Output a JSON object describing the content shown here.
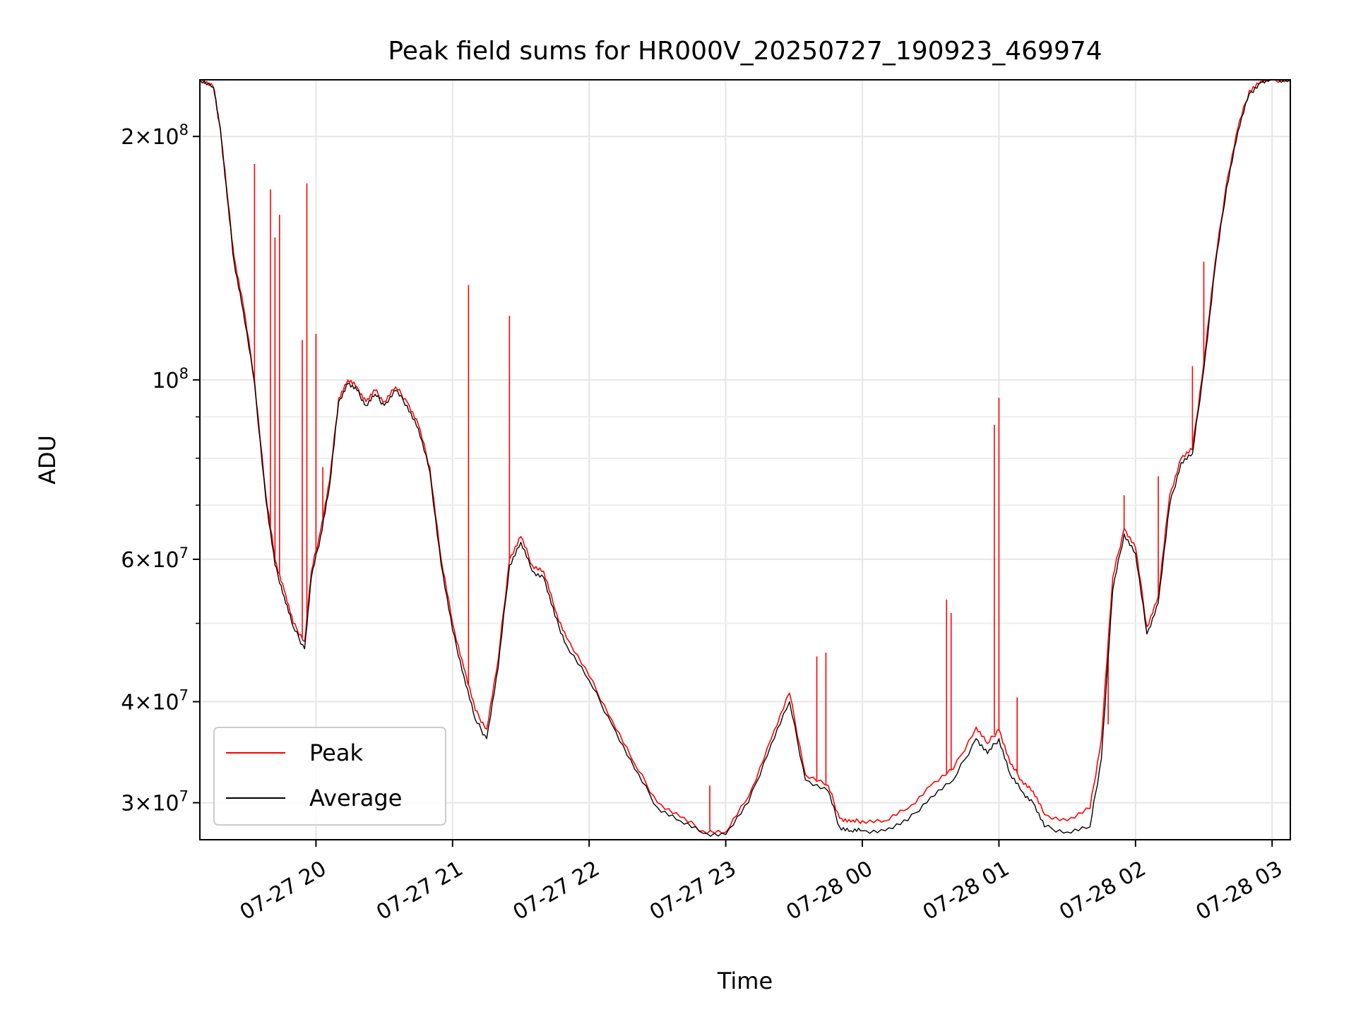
{
  "chart_data": {
    "type": "line",
    "title": "Peak field sums for HR000V_20250727_190923_469974",
    "xlabel": "Time",
    "ylabel": "ADU",
    "yscale": "log",
    "ylim": [
      27000000,
      235000000
    ],
    "xlim": [
      "07-27 19:09",
      "07-28 03:08"
    ],
    "grid": true,
    "legend_position": "lower-left",
    "x_ticks": [
      {
        "t": "07-27 20:00",
        "label": "07-27 20"
      },
      {
        "t": "07-27 21:00",
        "label": "07-27 21"
      },
      {
        "t": "07-27 22:00",
        "label": "07-27 22"
      },
      {
        "t": "07-27 23:00",
        "label": "07-27 23"
      },
      {
        "t": "07-28 00:00",
        "label": "07-28 00"
      },
      {
        "t": "07-28 01:00",
        "label": "07-28 01"
      },
      {
        "t": "07-28 02:00",
        "label": "07-28 02"
      },
      {
        "t": "07-28 03:00",
        "label": "07-28 03"
      }
    ],
    "y_ticks": [
      {
        "v": 30000000,
        "mant": "3",
        "exp": "7"
      },
      {
        "v": 40000000,
        "mant": "4",
        "exp": "7"
      },
      {
        "v": 60000000,
        "mant": "6",
        "exp": "7"
      },
      {
        "v": 100000000,
        "mant": "",
        "exp": "8"
      },
      {
        "v": 200000000,
        "mant": "2",
        "exp": "8"
      }
    ],
    "y_minor": [
      50000000,
      70000000,
      80000000,
      90000000
    ],
    "series": [
      {
        "name": "Peak",
        "color": "#ff0000",
        "t": [
          "07-27 19:09",
          "07-27 19:15",
          "07-27 19:18",
          "07-27 19:21",
          "07-27 19:24",
          "07-27 19:28",
          "07-27 19:33",
          "07-27 19:38",
          "07-27 19:42",
          "07-27 19:46",
          "07-27 19:50",
          "07-27 19:55",
          "07-27 19:58",
          "07-27 20:02",
          "07-27 20:06",
          "07-27 20:10",
          "07-27 20:14",
          "07-27 20:18",
          "07-27 20:22",
          "07-27 20:26",
          "07-27 20:30",
          "07-27 20:35",
          "07-27 20:40",
          "07-27 20:45",
          "07-27 20:50",
          "07-27 20:55",
          "07-27 21:00",
          "07-27 21:05",
          "07-27 21:10",
          "07-27 21:15",
          "07-27 21:20",
          "07-27 21:25",
          "07-27 21:30",
          "07-27 21:35",
          "07-27 21:40",
          "07-27 21:45",
          "07-27 21:50",
          "07-27 22:00",
          "07-27 22:10",
          "07-27 22:20",
          "07-27 22:30",
          "07-27 22:40",
          "07-27 22:50",
          "07-27 23:00",
          "07-27 23:10",
          "07-27 23:20",
          "07-27 23:28",
          "07-27 23:35",
          "07-27 23:45",
          "07-27 23:50",
          "07-27 23:55",
          "07-28 00:00",
          "07-28 00:10",
          "07-28 00:20",
          "07-28 00:30",
          "07-28 00:40",
          "07-28 00:50",
          "07-28 00:55",
          "07-28 01:00",
          "07-28 01:05",
          "07-28 01:10",
          "07-28 01:15",
          "07-28 01:20",
          "07-28 01:30",
          "07-28 01:40",
          "07-28 01:45",
          "07-28 01:50",
          "07-28 01:55",
          "07-28 02:00",
          "07-28 02:05",
          "07-28 02:10",
          "07-28 02:15",
          "07-28 02:20",
          "07-28 02:25",
          "07-28 02:30",
          "07-28 02:35",
          "07-28 02:40",
          "07-28 02:45",
          "07-28 02:50",
          "07-28 02:55",
          "07-28 03:00",
          "07-28 03:08"
        ],
        "values": [
          235000000,
          230000000,
          205000000,
          170000000,
          142000000,
          124000000,
          100000000,
          72000000,
          60000000,
          55000000,
          50000000,
          47500000,
          58000000,
          65000000,
          75000000,
          95000000,
          100000000,
          98000000,
          94000000,
          97000000,
          94000000,
          98000000,
          94000000,
          88000000,
          78000000,
          60000000,
          50000000,
          44000000,
          39000000,
          37000000,
          45000000,
          60000000,
          64000000,
          59000000,
          58000000,
          52000000,
          48000000,
          43000000,
          38000000,
          33500000,
          30000000,
          28800000,
          27700000,
          27600000,
          30500000,
          36000000,
          41000000,
          32500000,
          31500000,
          28700000,
          28400000,
          28500000,
          28500000,
          29500000,
          31500000,
          33000000,
          37200000,
          35500000,
          37000000,
          33500000,
          32000000,
          31000000,
          29000000,
          28500000,
          29500000,
          36000000,
          57000000,
          65500000,
          62000000,
          49500000,
          54000000,
          72000000,
          80000000,
          82000000,
          105000000,
          140000000,
          175000000,
          205000000,
          228000000,
          234000000,
          235000000,
          235000000
        ],
        "spikes": [
          {
            "t": "07-27 19:33",
            "v": 185000000
          },
          {
            "t": "07-27 19:40",
            "v": 172000000
          },
          {
            "t": "07-27 19:42",
            "v": 150000000
          },
          {
            "t": "07-27 19:44",
            "v": 160000000
          },
          {
            "t": "07-27 19:54",
            "v": 112000000
          },
          {
            "t": "07-27 19:56",
            "v": 175000000
          },
          {
            "t": "07-27 20:00",
            "v": 114000000
          },
          {
            "t": "07-27 20:03",
            "v": 78000000
          },
          {
            "t": "07-27 21:07",
            "v": 131000000
          },
          {
            "t": "07-27 21:25",
            "v": 120000000
          },
          {
            "t": "07-27 22:53",
            "v": 31500000
          },
          {
            "t": "07-27 23:40",
            "v": 45500000
          },
          {
            "t": "07-27 23:44",
            "v": 46000000
          },
          {
            "t": "07-28 00:37",
            "v": 53500000
          },
          {
            "t": "07-28 00:39",
            "v": 51500000
          },
          {
            "t": "07-28 00:58",
            "v": 88000000
          },
          {
            "t": "07-28 01:00",
            "v": 95000000
          },
          {
            "t": "07-28 01:08",
            "v": 40500000
          },
          {
            "t": "07-28 01:48",
            "v": 37500000
          },
          {
            "t": "07-28 01:55",
            "v": 72000000
          },
          {
            "t": "07-28 02:10",
            "v": 76000000
          },
          {
            "t": "07-28 02:25",
            "v": 104000000
          },
          {
            "t": "07-28 02:30",
            "v": 140000000
          }
        ]
      },
      {
        "name": "Average",
        "color": "#000000",
        "t": [
          "07-27 19:09",
          "07-27 19:15",
          "07-27 19:18",
          "07-27 19:21",
          "07-27 19:24",
          "07-27 19:28",
          "07-27 19:33",
          "07-27 19:38",
          "07-27 19:42",
          "07-27 19:46",
          "07-27 19:50",
          "07-27 19:55",
          "07-27 19:58",
          "07-27 20:02",
          "07-27 20:06",
          "07-27 20:10",
          "07-27 20:14",
          "07-27 20:18",
          "07-27 20:22",
          "07-27 20:26",
          "07-27 20:30",
          "07-27 20:35",
          "07-27 20:40",
          "07-27 20:45",
          "07-27 20:50",
          "07-27 20:55",
          "07-27 21:00",
          "07-27 21:05",
          "07-27 21:10",
          "07-27 21:15",
          "07-27 21:20",
          "07-27 21:25",
          "07-27 21:30",
          "07-27 21:35",
          "07-27 21:40",
          "07-27 21:45",
          "07-27 21:50",
          "07-27 22:00",
          "07-27 22:10",
          "07-27 22:20",
          "07-27 22:30",
          "07-27 22:40",
          "07-27 22:50",
          "07-27 23:00",
          "07-27 23:10",
          "07-27 23:20",
          "07-27 23:28",
          "07-27 23:35",
          "07-27 23:45",
          "07-27 23:50",
          "07-27 23:55",
          "07-28 00:00",
          "07-28 00:10",
          "07-28 00:20",
          "07-28 00:30",
          "07-28 00:40",
          "07-28 00:50",
          "07-28 00:55",
          "07-28 01:00",
          "07-28 01:05",
          "07-28 01:10",
          "07-28 01:15",
          "07-28 01:20",
          "07-28 01:30",
          "07-28 01:40",
          "07-28 01:45",
          "07-28 01:50",
          "07-28 01:55",
          "07-28 02:00",
          "07-28 02:05",
          "07-28 02:10",
          "07-28 02:15",
          "07-28 02:20",
          "07-28 02:25",
          "07-28 02:30",
          "07-28 02:35",
          "07-28 02:40",
          "07-28 02:45",
          "07-28 02:50",
          "07-28 02:55",
          "07-28 03:00",
          "07-28 03:08"
        ],
        "values": [
          235000000,
          230000000,
          204000000,
          168000000,
          140000000,
          122000000,
          99000000,
          71000000,
          59000000,
          54000000,
          49500000,
          46500000,
          57000000,
          64000000,
          74000000,
          94000000,
          99000000,
          97000000,
          93000000,
          96000000,
          93000000,
          97000000,
          93000000,
          87000000,
          77000000,
          59000000,
          49000000,
          43000000,
          38000000,
          36000000,
          44000000,
          59000000,
          63000000,
          58000000,
          57000000,
          51000000,
          47000000,
          42500000,
          37500000,
          33000000,
          29600000,
          28500000,
          27500000,
          27400000,
          30000000,
          35500000,
          40000000,
          32000000,
          31000000,
          28000000,
          27700000,
          27700000,
          27700000,
          28500000,
          30500000,
          32000000,
          36000000,
          34500000,
          36000000,
          32500000,
          31000000,
          30000000,
          28000000,
          27600000,
          28000000,
          34000000,
          55000000,
          64500000,
          61000000,
          48500000,
          53000000,
          70000000,
          79000000,
          81000000,
          103000000,
          138000000,
          173000000,
          203000000,
          226000000,
          233000000,
          235000000,
          235000000
        ]
      }
    ]
  }
}
